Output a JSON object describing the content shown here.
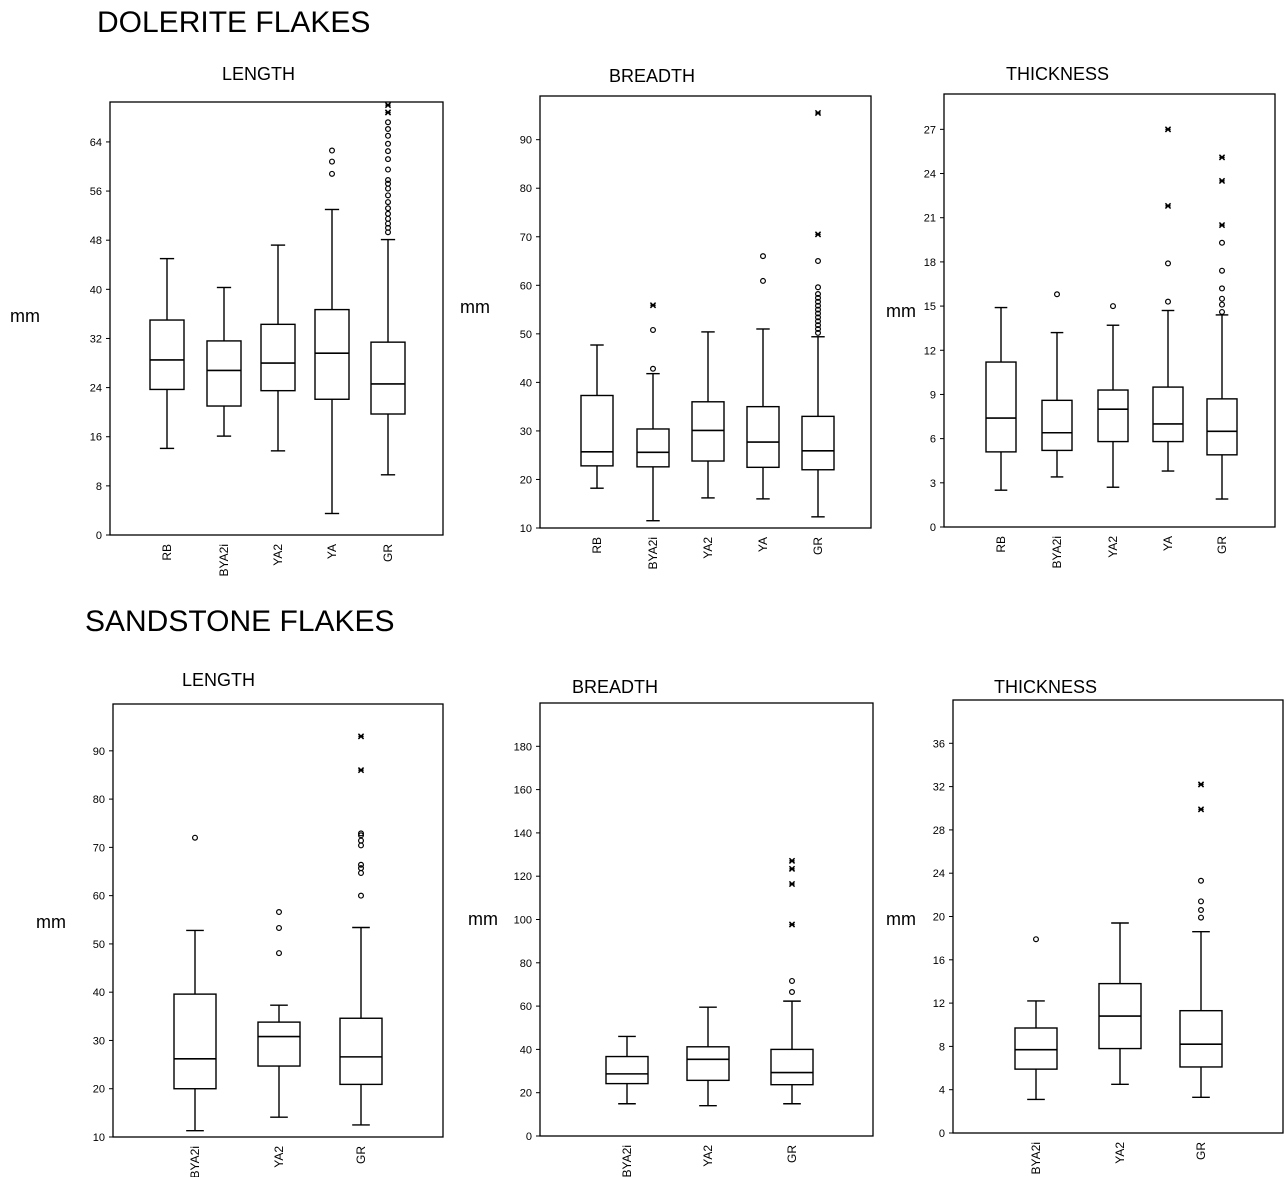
{
  "sections": [
    {
      "title": "DOLERITE FLAKES"
    },
    {
      "title": "SANDSTONE FLAKES"
    }
  ],
  "chart_data": [
    {
      "type": "boxplot",
      "section": "DOLERITE FLAKES",
      "title": "LENGTH",
      "ylabel": "mm",
      "ylim": [
        0,
        70.5
      ],
      "yticks": [
        0,
        8,
        16,
        24,
        32,
        40,
        48,
        56,
        64
      ],
      "categories": [
        "RB",
        "BYA2i",
        "YA2",
        "YA",
        "GR"
      ],
      "boxes": [
        {
          "min": 14.1,
          "q1": 23.7,
          "median": 28.5,
          "q3": 35,
          "max": 45,
          "outliers": [],
          "extremes": []
        },
        {
          "min": 16.1,
          "q1": 21,
          "median": 26.8,
          "q3": 31.6,
          "max": 40.3,
          "outliers": [],
          "extremes": []
        },
        {
          "min": 13.7,
          "q1": 23.5,
          "median": 28,
          "q3": 34.3,
          "max": 47.2,
          "outliers": [],
          "extremes": []
        },
        {
          "min": 3.5,
          "q1": 22.1,
          "median": 29.6,
          "q3": 36.7,
          "max": 53,
          "outliers": [
            58.8,
            60.8,
            62.6
          ],
          "extremes": []
        },
        {
          "min": 9.8,
          "q1": 19.7,
          "median": 24.6,
          "q3": 31.4,
          "max": 48.1,
          "outliers": [
            49.3,
            50,
            50.7,
            51.5,
            52.3,
            53.2,
            54.2,
            55.3,
            56.4,
            57.2,
            57.8,
            59.5,
            61.2,
            62.5,
            63.7,
            65,
            66.1,
            67.2
          ],
          "extremes": [
            68.8,
            70
          ]
        }
      ]
    },
    {
      "type": "boxplot",
      "section": "DOLERITE FLAKES",
      "title": "BREADTH",
      "ylabel": "mm",
      "ylim": [
        10,
        99
      ],
      "yticks": [
        10,
        20,
        30,
        40,
        50,
        60,
        70,
        80,
        90
      ],
      "categories": [
        "RB",
        "BYA2i",
        "YA2",
        "YA",
        "GR"
      ],
      "boxes": [
        {
          "min": 18.2,
          "q1": 22.8,
          "median": 25.7,
          "q3": 37.3,
          "max": 47.7,
          "outliers": [],
          "extremes": []
        },
        {
          "min": 11.5,
          "q1": 22.6,
          "median": 25.6,
          "q3": 30.4,
          "max": 41.8,
          "outliers": [
            42.8,
            50.8
          ],
          "extremes": [
            55.9
          ]
        },
        {
          "min": 16.2,
          "q1": 23.8,
          "median": 30.1,
          "q3": 36,
          "max": 50.4,
          "outliers": [],
          "extremes": []
        },
        {
          "min": 16,
          "q1": 22.5,
          "median": 27.7,
          "q3": 35,
          "max": 51,
          "outliers": [
            60.9,
            66
          ],
          "extremes": []
        },
        {
          "min": 12.3,
          "q1": 22,
          "median": 25.9,
          "q3": 33,
          "max": 49.4,
          "outliers": [
            50.2,
            51,
            51.8,
            52.6,
            53.4,
            54.2,
            55,
            55.8,
            56.6,
            57.4,
            58.2,
            59.6,
            65
          ],
          "extremes": [
            70.5,
            95.5
          ]
        }
      ]
    },
    {
      "type": "boxplot",
      "section": "DOLERITE FLAKES",
      "title": "THICKNESS",
      "ylabel": "mm",
      "ylim": [
        0,
        29.4
      ],
      "yticks": [
        0,
        3,
        6,
        9,
        12,
        15,
        18,
        21,
        24,
        27
      ],
      "categories": [
        "RB",
        "BYA2i",
        "YA2",
        "YA",
        "GR"
      ],
      "boxes": [
        {
          "min": 2.5,
          "q1": 5.1,
          "median": 7.4,
          "q3": 11.2,
          "max": 14.9,
          "outliers": [],
          "extremes": []
        },
        {
          "min": 3.4,
          "q1": 5.2,
          "median": 6.4,
          "q3": 8.6,
          "max": 13.2,
          "outliers": [
            15.8
          ],
          "extremes": []
        },
        {
          "min": 2.7,
          "q1": 5.8,
          "median": 8,
          "q3": 9.3,
          "max": 13.7,
          "outliers": [
            15
          ],
          "extremes": []
        },
        {
          "min": 3.8,
          "q1": 5.8,
          "median": 7,
          "q3": 9.5,
          "max": 14.7,
          "outliers": [
            15.3,
            17.9
          ],
          "extremes": [
            21.8,
            27
          ]
        },
        {
          "min": 1.9,
          "q1": 4.9,
          "median": 6.5,
          "q3": 8.7,
          "max": 14.4,
          "outliers": [
            14.6,
            15.1,
            15.5,
            16.2,
            17.4,
            19.3
          ],
          "extremes": [
            20.5,
            23.5,
            25.1
          ]
        }
      ]
    },
    {
      "type": "boxplot",
      "section": "SANDSTONE FLAKES",
      "title": "LENGTH",
      "ylabel": "mm",
      "ylim": [
        10,
        99.7
      ],
      "yticks": [
        10,
        20,
        30,
        40,
        50,
        60,
        70,
        80,
        90
      ],
      "categories": [
        "BYA2i",
        "YA2",
        "GR"
      ],
      "boxes": [
        {
          "min": 11.3,
          "q1": 20,
          "median": 26.2,
          "q3": 39.6,
          "max": 52.8,
          "outliers": [
            72
          ],
          "extremes": []
        },
        {
          "min": 14.1,
          "q1": 24.7,
          "median": 30.8,
          "q3": 33.8,
          "max": 37.3,
          "outliers": [
            48.1,
            53.3,
            56.6
          ],
          "extremes": []
        },
        {
          "min": 12.5,
          "q1": 20.9,
          "median": 26.6,
          "q3": 34.6,
          "max": 53.4,
          "outliers": [
            60,
            64.7,
            65.7,
            66.4,
            70.4,
            71.4,
            72.5,
            72.9
          ],
          "extremes": [
            86,
            93
          ]
        }
      ]
    },
    {
      "type": "boxplot",
      "section": "SANDSTONE FLAKES",
      "title": "BREADTH",
      "ylabel": "mm",
      "ylim": [
        0,
        200
      ],
      "yticks": [
        0,
        20,
        40,
        60,
        80,
        100,
        120,
        140,
        160,
        180
      ],
      "categories": [
        "BYA2i",
        "YA2",
        "GR"
      ],
      "boxes": [
        {
          "min": 14.9,
          "q1": 24.2,
          "median": 28.7,
          "q3": 36.7,
          "max": 46,
          "outliers": [],
          "extremes": []
        },
        {
          "min": 14,
          "q1": 25.7,
          "median": 35.4,
          "q3": 41.2,
          "max": 59.5,
          "outliers": [],
          "extremes": []
        },
        {
          "min": 14.9,
          "q1": 23.7,
          "median": 29.3,
          "q3": 40,
          "max": 62.3,
          "outliers": [
            66.5,
            71.6
          ],
          "extremes": [
            97.7,
            116.4,
            123.4,
            127.1
          ]
        }
      ]
    },
    {
      "type": "boxplot",
      "section": "SANDSTONE FLAKES",
      "title": "THICKNESS",
      "ylabel": "mm",
      "ylim": [
        0,
        40
      ],
      "yticks": [
        0,
        4,
        8,
        12,
        16,
        20,
        24,
        28,
        32,
        36
      ],
      "categories": [
        "BYA2i",
        "YA2",
        "GR"
      ],
      "boxes": [
        {
          "min": 3.1,
          "q1": 5.9,
          "median": 7.7,
          "q3": 9.7,
          "max": 12.2,
          "outliers": [
            17.9
          ],
          "extremes": []
        },
        {
          "min": 4.5,
          "q1": 7.8,
          "median": 10.8,
          "q3": 13.8,
          "max": 19.4,
          "outliers": [],
          "extremes": []
        },
        {
          "min": 3.3,
          "q1": 6.1,
          "median": 8.2,
          "q3": 11.3,
          "max": 18.6,
          "outliers": [
            19.9,
            20.6,
            21.4,
            23.3
          ],
          "extremes": [
            29.9,
            32.2
          ]
        }
      ]
    }
  ]
}
